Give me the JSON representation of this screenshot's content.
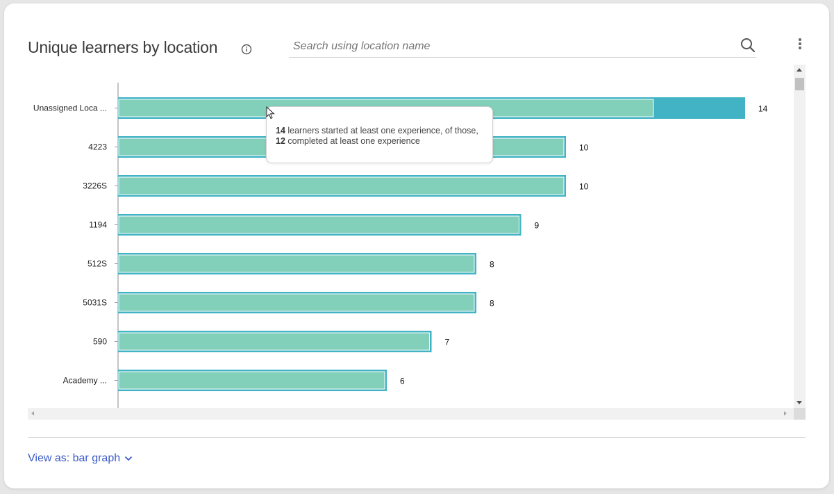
{
  "header": {
    "title": "Unique learners by location",
    "info_icon": "info-icon",
    "search_placeholder": "Search using location name",
    "search_icon": "search-icon",
    "menu_icon": "kebab-menu-icon"
  },
  "chart_data": {
    "type": "bar",
    "orientation": "horizontal",
    "categories": [
      "Unassigned Loca ...",
      "4223",
      "3226S",
      "1194",
      "512S",
      "5031S",
      "590",
      "Academy ..."
    ],
    "series": [
      {
        "values": [
          14,
          10,
          10,
          9,
          8,
          8,
          7,
          6
        ]
      },
      {
        "values": [
          12,
          10,
          10,
          9,
          8,
          8,
          7,
          6
        ]
      }
    ],
    "data_labels": [
      "14",
      "10",
      "10",
      "9",
      "8",
      "8",
      "7",
      "6"
    ],
    "xlim": [
      0,
      14
    ],
    "colors": {
      "outer": "#42b3c5",
      "inner": "#82cfba",
      "axis": "#9e9e9e"
    },
    "highlighted_index": 0
  },
  "tooltip": {
    "started_count": "14",
    "started_text": " learners started at least one experience, of those,",
    "completed_count": "12",
    "completed_text": " completed at least one experience"
  },
  "footer": {
    "view_as_label": "View as: bar graph",
    "chevron_icon": "chevron-down-icon"
  }
}
